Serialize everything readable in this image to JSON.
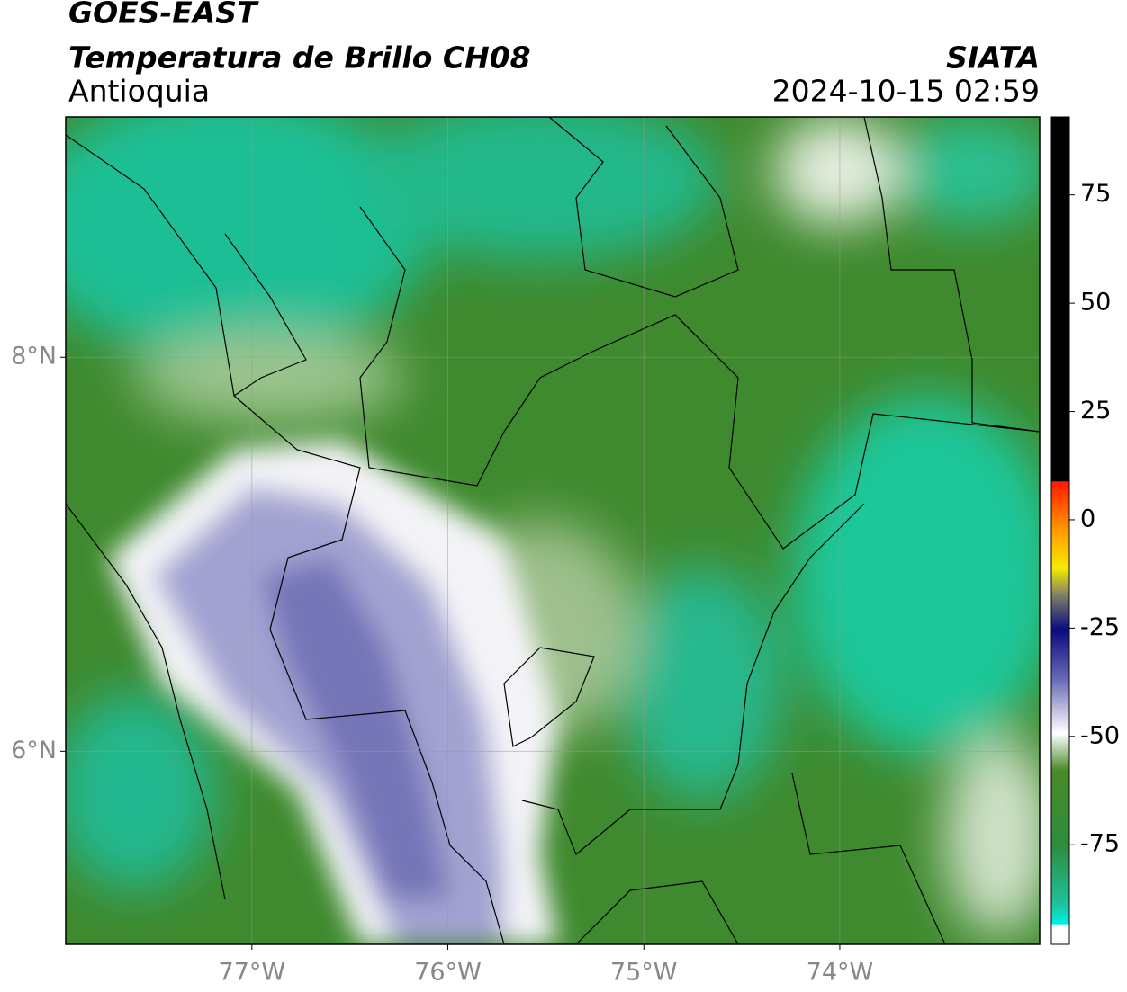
{
  "header": {
    "title": "GOES-EAST",
    "subtitle": "Temperatura de Brillo CH08",
    "region": "Antioquia",
    "source": "SIATA",
    "datetime": "2024-10-15 02:59"
  },
  "map": {
    "xlim": [
      -77.95,
      -72.98
    ],
    "ylim": [
      5.02,
      9.22
    ],
    "xticks": [
      {
        "value": -77,
        "label": "77°W"
      },
      {
        "value": -76,
        "label": "76°W"
      },
      {
        "value": -75,
        "label": "75°W"
      },
      {
        "value": -74,
        "label": "74°W"
      }
    ],
    "yticks": [
      {
        "value": 6,
        "label": "6°N"
      },
      {
        "value": 8,
        "label": "8°N"
      }
    ],
    "grid": true
  },
  "colorbar": {
    "lim": [
      -98,
      93
    ],
    "ticks": [
      -75,
      -50,
      -25,
      0,
      25,
      50,
      75
    ]
  }
}
